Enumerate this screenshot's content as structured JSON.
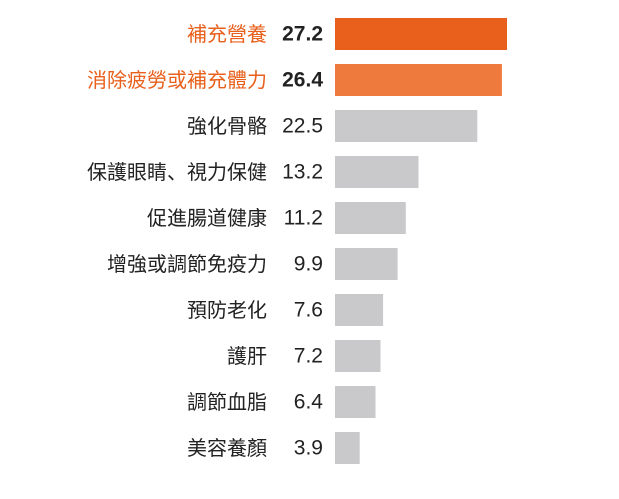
{
  "chart_data": {
    "type": "bar",
    "orientation": "horizontal",
    "title": "",
    "xlabel": "",
    "ylabel": "",
    "grid": false,
    "categories": [
      "補充營養",
      "消除疲勞或補充體力",
      "強化骨骼",
      "保護眼睛、視力保健",
      "促進腸道健康",
      "增強或調節免疫力",
      "預防老化",
      "護肝",
      "調節血脂",
      "美容養顏"
    ],
    "values": [
      27.2,
      26.4,
      22.5,
      13.2,
      11.2,
      9.9,
      7.6,
      7.2,
      6.4,
      3.9
    ],
    "value_labels": [
      "27.2",
      "26.4",
      "22.5",
      "13.2",
      "11.2",
      "9.9",
      "7.6",
      "7.2",
      "6.4",
      "3.9"
    ],
    "highlighted": [
      true,
      true,
      false,
      false,
      false,
      false,
      false,
      false,
      false,
      false
    ],
    "colors": {
      "highlight_primary": "#E8601C",
      "highlight_secondary": "#EE7A3E",
      "bar_default": "#C9C9CC",
      "label_highlight": "#E8601C",
      "label_default": "#222222"
    },
    "xlim": [
      0,
      27.2
    ]
  }
}
